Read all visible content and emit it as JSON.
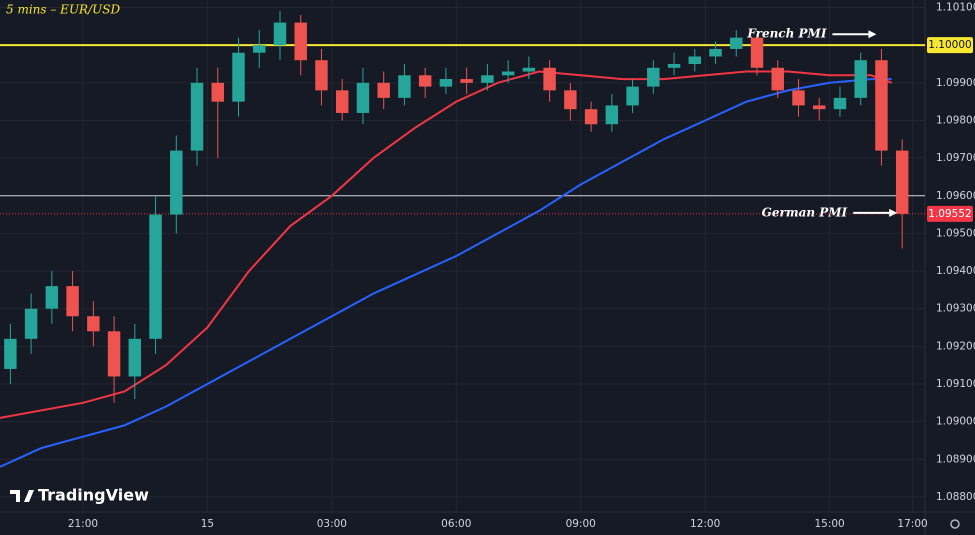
{
  "chart_data": {
    "type": "candlestick",
    "title": "5 mins – EUR/USD",
    "brand": "TradingView",
    "up_color": "#26a69a",
    "down_color": "#ef5350",
    "candles": {
      "x": [
        -5,
        -4.5,
        -4,
        -3.5,
        -3,
        -2.5,
        -2,
        -1.5,
        -1,
        -0.5,
        0,
        0.5,
        1,
        1.5,
        2,
        2.5,
        3,
        3.5,
        4,
        4.5,
        5,
        5.5,
        6,
        6.5,
        7,
        7.5,
        8,
        8.5,
        9,
        9.5,
        10,
        10.5,
        11,
        11.5,
        12,
        12.5,
        13,
        13.5,
        14,
        14.5,
        15,
        15.5,
        16,
        16.5
      ],
      "open": [
        1.0914,
        1.0922,
        1.093,
        1.0936,
        1.0928,
        1.0924,
        1.0912,
        1.0922,
        1.0955,
        1.0972,
        1.099,
        1.0985,
        1.0998,
        1.1,
        1.1006,
        1.0996,
        1.0988,
        1.0982,
        1.099,
        1.0986,
        1.0992,
        1.0989,
        1.0991,
        1.099,
        1.0992,
        1.0993,
        1.0994,
        1.0988,
        1.0983,
        1.0979,
        1.0984,
        1.0989,
        1.0994,
        1.0995,
        1.0997,
        1.0999,
        1.1002,
        1.0994,
        1.0988,
        1.0984,
        1.0983,
        1.0986,
        1.0996,
        1.0972
      ],
      "high": [
        1.0926,
        1.0934,
        1.094,
        1.094,
        1.0932,
        1.0928,
        1.0926,
        1.096,
        1.0976,
        1.0994,
        1.0994,
        1.1002,
        1.1004,
        1.1009,
        1.1008,
        1.0999,
        1.0991,
        1.0994,
        1.0993,
        1.0995,
        1.0994,
        1.0994,
        1.0994,
        1.0995,
        1.0996,
        1.0997,
        1.0996,
        1.099,
        1.0985,
        1.0987,
        1.0991,
        1.0996,
        1.0998,
        1.0999,
        1.1001,
        1.1004,
        1.1003,
        1.0996,
        1.0991,
        1.0986,
        1.0989,
        1.0998,
        1.0999,
        1.0975
      ],
      "low": [
        1.091,
        1.0918,
        1.0926,
        1.0924,
        1.092,
        1.0905,
        1.0906,
        1.0918,
        1.095,
        1.0968,
        1.097,
        1.0981,
        1.0994,
        1.0996,
        1.0992,
        1.0984,
        1.098,
        1.0979,
        1.0983,
        1.0984,
        1.0986,
        1.0987,
        1.0987,
        1.0988,
        1.099,
        1.0991,
        1.0985,
        1.098,
        1.0977,
        1.0977,
        1.0982,
        1.0987,
        1.0992,
        1.0993,
        1.0995,
        1.0997,
        1.0992,
        1.0986,
        1.0981,
        1.098,
        1.0981,
        1.0984,
        1.0968,
        1.0946
      ],
      "close": [
        1.0922,
        1.093,
        1.0936,
        1.0928,
        1.0924,
        1.0912,
        1.0922,
        1.0955,
        1.0972,
        1.099,
        1.0985,
        1.0998,
        1.1,
        1.1006,
        1.0996,
        1.0988,
        1.0982,
        1.099,
        1.0986,
        1.0992,
        1.0989,
        1.0991,
        1.099,
        1.0992,
        1.0993,
        1.0994,
        1.0988,
        1.0983,
        1.0979,
        1.0984,
        1.0989,
        1.0994,
        1.0995,
        1.0997,
        1.0999,
        1.1002,
        1.0994,
        1.0988,
        1.0984,
        1.0983,
        1.0986,
        1.0996,
        1.0972,
        1.09552
      ]
    },
    "lines": [
      {
        "color": "#f23645",
        "x": [
          -5,
          -3,
          -2,
          -1,
          0,
          1,
          2,
          3,
          4,
          5,
          6,
          7,
          8,
          9,
          10,
          11,
          12,
          13,
          14,
          15,
          16,
          16.5
        ],
        "values": [
          1.0901,
          1.0905,
          1.0908,
          1.0915,
          1.0925,
          1.094,
          1.0952,
          1.096,
          1.097,
          1.0978,
          1.0985,
          1.099,
          1.0993,
          1.0992,
          1.0991,
          1.0991,
          1.0992,
          1.0993,
          1.0993,
          1.0992,
          1.0992,
          1.099
        ]
      },
      {
        "color": "#2962ff",
        "x": [
          -5,
          -4,
          -3,
          -2,
          -1,
          0,
          1,
          2,
          3,
          4,
          5,
          6,
          7,
          8,
          9,
          10,
          11,
          12,
          13,
          14,
          15,
          16,
          16.5
        ],
        "values": [
          1.0888,
          1.0893,
          1.0896,
          1.0899,
          1.0904,
          1.091,
          1.0916,
          1.0922,
          1.0928,
          1.0934,
          1.0939,
          1.0944,
          1.095,
          1.0956,
          1.0963,
          1.0969,
          1.0975,
          1.098,
          1.0985,
          1.0988,
          1.099,
          1.0991,
          1.0991
        ]
      }
    ],
    "hlines": [
      {
        "value": 1.1,
        "label": "1.10000",
        "color": "#f7e733"
      },
      {
        "value": 1.096,
        "color": "#d1d4dc"
      },
      {
        "value": 1.09552,
        "label": "1.09552",
        "color": "#f23645"
      }
    ],
    "annotations": [
      {
        "text": "French PMI",
        "candle": 42
      },
      {
        "text": "German PMI",
        "candle": 43
      }
    ],
    "xlim": [
      -5,
      17.3
    ],
    "ylim": [
      1.0876,
      1.1012
    ],
    "xticks": [
      {
        "value": -3,
        "label": "21:00"
      },
      {
        "value": 0,
        "label": "15"
      },
      {
        "value": 3,
        "label": "03:00"
      },
      {
        "value": 6,
        "label": "06:00"
      },
      {
        "value": 9,
        "label": "09:00"
      },
      {
        "value": 12,
        "label": "12:00"
      },
      {
        "value": 15,
        "label": "15:00"
      },
      {
        "value": 17,
        "label": "17:00"
      }
    ],
    "yticks": [
      {
        "value": 1.101,
        "label": "1.10100"
      },
      {
        "value": 1.099,
        "label": "1.09900"
      },
      {
        "value": 1.098,
        "label": "1.09800"
      },
      {
        "value": 1.097,
        "label": "1.09700"
      },
      {
        "value": 1.096,
        "label": "1.09600"
      },
      {
        "value": 1.095,
        "label": "1.09500"
      },
      {
        "value": 1.094,
        "label": "1.09400"
      },
      {
        "value": 1.093,
        "label": "1.09300"
      },
      {
        "value": 1.092,
        "label": "1.09200"
      },
      {
        "value": 1.091,
        "label": "1.09100"
      },
      {
        "value": 1.09,
        "label": "1.09000"
      },
      {
        "value": 1.089,
        "label": "1.08900"
      },
      {
        "value": 1.088,
        "label": "1.08800"
      }
    ],
    "grid": true
  }
}
